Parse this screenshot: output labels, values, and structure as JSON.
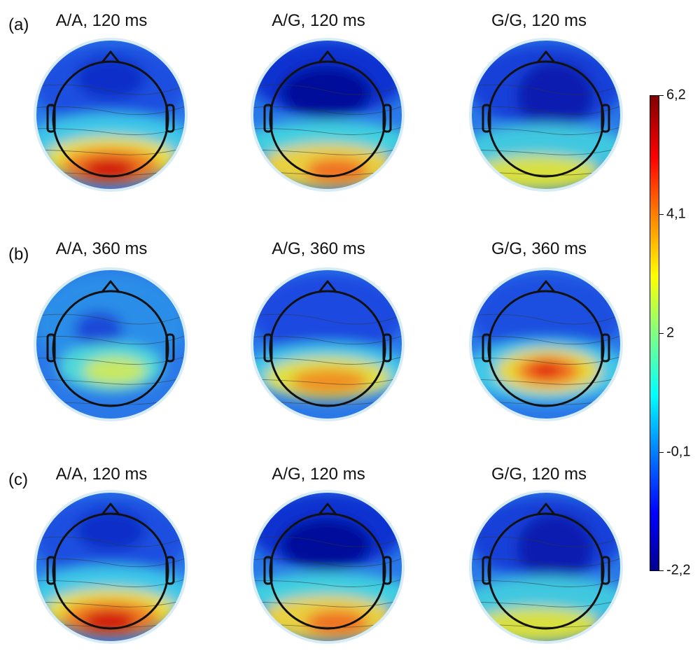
{
  "rows": [
    {
      "label": "(a)",
      "maps": [
        {
          "title": "A/A, 120 ms",
          "pattern": "posterior-strong"
        },
        {
          "title": "A/G, 120 ms",
          "pattern": "frontal-neg-posterior-pos"
        },
        {
          "title": "G/G, 120 ms",
          "pattern": "frontal-neg-weak-posterior"
        }
      ]
    },
    {
      "label": "(b)",
      "maps": [
        {
          "title": "A/A, 360 ms",
          "pattern": "mottled-weak"
        },
        {
          "title": "A/G, 360 ms",
          "pattern": "centroparietal-pos"
        },
        {
          "title": "G/G, 360 ms",
          "pattern": "centroparietal-strong"
        }
      ]
    },
    {
      "label": "(c)",
      "maps": [
        {
          "title": "A/A, 120 ms",
          "pattern": "posterior-strong"
        },
        {
          "title": "A/G, 120 ms",
          "pattern": "frontal-neg-posterior-pos"
        },
        {
          "title": "G/G, 120 ms",
          "pattern": "frontal-neg-weak-posterior"
        }
      ]
    }
  ],
  "colorbar": {
    "min": -2.2,
    "max": 6.2,
    "ticks": [
      "6,2",
      "4,1",
      "2",
      "-0,1",
      "-2,2"
    ],
    "colors": [
      "#00008f",
      "#0000ff",
      "#0080ff",
      "#00ffff",
      "#80ff80",
      "#ffff00",
      "#ff8000",
      "#ff0000",
      "#800000"
    ]
  }
}
